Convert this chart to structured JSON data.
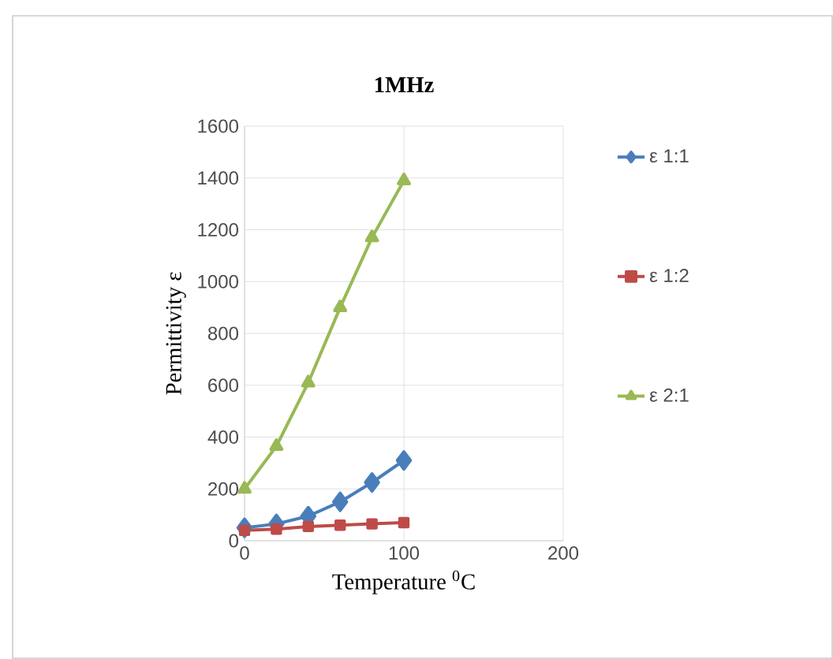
{
  "chart_data": {
    "type": "line",
    "title": "1MHz",
    "xlabel": "Temperature $^{0}$C",
    "ylabel": "Permittivity ε",
    "x": [
      0,
      20,
      40,
      60,
      80,
      100
    ],
    "series": [
      {
        "name": "ε 1:1",
        "color": "#4a7ebb",
        "marker": "diamond",
        "values": [
          50,
          65,
          95,
          150,
          225,
          310
        ]
      },
      {
        "name": "ε 1:2",
        "color": "#be4b48",
        "marker": "square",
        "values": [
          40,
          45,
          55,
          60,
          65,
          70
        ]
      },
      {
        "name": "ε 2:1",
        "color": "#98b954",
        "marker": "triangle",
        "values": [
          200,
          365,
          610,
          900,
          1170,
          1390
        ]
      }
    ],
    "xlim": [
      0,
      200
    ],
    "xticks": [
      0,
      100,
      200
    ],
    "ylim": [
      0,
      1600
    ],
    "yticks": [
      0,
      200,
      400,
      600,
      800,
      1000,
      1200,
      1400,
      1600
    ],
    "grid": true,
    "legend": "right",
    "line_style": "solid"
  }
}
